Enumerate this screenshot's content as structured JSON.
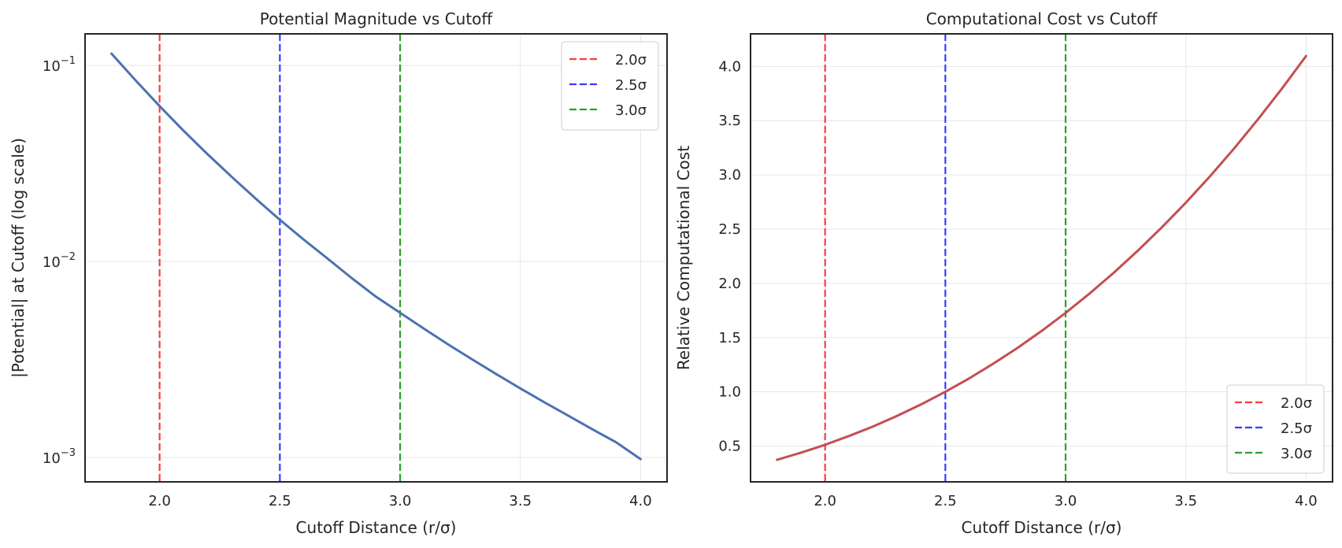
{
  "chart_data": [
    {
      "type": "line",
      "title": "Potential Magnitude vs Cutoff",
      "xlabel": "Cutoff Distance (r/σ)",
      "ylabel": "|Potential| at Cutoff (log scale)",
      "yscale": "log",
      "xlim": [
        1.69,
        4.11
      ],
      "ylim": [
        0.00075,
        0.145
      ],
      "xticks": [
        2.0,
        2.5,
        3.0,
        3.5,
        4.0
      ],
      "xtick_labels": [
        "2.0",
        "2.5",
        "3.0",
        "3.5",
        "4.0"
      ],
      "yticks": [
        0.001,
        0.01,
        0.1
      ],
      "ytick_labels": [
        {
          "base": "10",
          "exp": "−3"
        },
        {
          "base": "10",
          "exp": "−2"
        },
        {
          "base": "10",
          "exp": "−1"
        }
      ],
      "grid": true,
      "legend_position": "top-right",
      "series": [
        {
          "color": "#4c72b0",
          "x": [
            1.8,
            1.9,
            2.0,
            2.1,
            2.2,
            2.3,
            2.4,
            2.5,
            2.6,
            2.7,
            2.8,
            2.9,
            3.0,
            3.1,
            3.2,
            3.3,
            3.4,
            3.5,
            3.6,
            3.7,
            3.8,
            3.9,
            4.0
          ],
          "y": [
            0.115,
            0.084,
            0.062,
            0.0464,
            0.0352,
            0.027,
            0.0209,
            0.0163,
            0.0129,
            0.0103,
            0.0082,
            0.0066,
            0.00547,
            0.00453,
            0.00377,
            0.00316,
            0.00266,
            0.00225,
            0.00191,
            0.00163,
            0.00139,
            0.00119,
            0.00098
          ]
        }
      ],
      "vlines": [
        {
          "name": "2.0σ",
          "x": 2.0,
          "color": "#ff3b3b"
        },
        {
          "name": "2.5σ",
          "x": 2.5,
          "color": "#3b3bff"
        },
        {
          "name": "3.0σ",
          "x": 3.0,
          "color": "#2ca02c"
        }
      ]
    },
    {
      "type": "line",
      "title": "Computational Cost vs Cutoff",
      "xlabel": "Cutoff Distance (r/σ)",
      "ylabel": "Relative Computational Cost",
      "yscale": "linear",
      "xlim": [
        1.69,
        4.11
      ],
      "ylim": [
        0.17,
        4.3
      ],
      "xticks": [
        2.0,
        2.5,
        3.0,
        3.5,
        4.0
      ],
      "xtick_labels": [
        "2.0",
        "2.5",
        "3.0",
        "3.5",
        "4.0"
      ],
      "yticks": [
        0.5,
        1.0,
        1.5,
        2.0,
        2.5,
        3.0,
        3.5,
        4.0
      ],
      "ytick_labels": [
        "0.5",
        "1.0",
        "1.5",
        "2.0",
        "2.5",
        "3.0",
        "3.5",
        "4.0"
      ],
      "grid": true,
      "legend_position": "bottom-right",
      "series": [
        {
          "color": "#c44e52",
          "x": [
            1.8,
            1.9,
            2.0,
            2.1,
            2.2,
            2.3,
            2.4,
            2.5,
            2.6,
            2.7,
            2.8,
            2.9,
            3.0,
            3.1,
            3.2,
            3.3,
            3.4,
            3.5,
            3.6,
            3.7,
            3.8,
            3.9,
            4.0
          ],
          "y": [
            0.373,
            0.439,
            0.512,
            0.593,
            0.681,
            0.779,
            0.885,
            1.0,
            1.125,
            1.26,
            1.405,
            1.561,
            1.728,
            1.907,
            2.097,
            2.3,
            2.516,
            2.744,
            2.986,
            3.242,
            3.512,
            3.797,
            4.096
          ]
        }
      ],
      "vlines": [
        {
          "name": "2.0σ",
          "x": 2.0,
          "color": "#ff3b3b"
        },
        {
          "name": "2.5σ",
          "x": 2.5,
          "color": "#3b3bff"
        },
        {
          "name": "3.0σ",
          "x": 3.0,
          "color": "#2ca02c"
        }
      ]
    }
  ]
}
